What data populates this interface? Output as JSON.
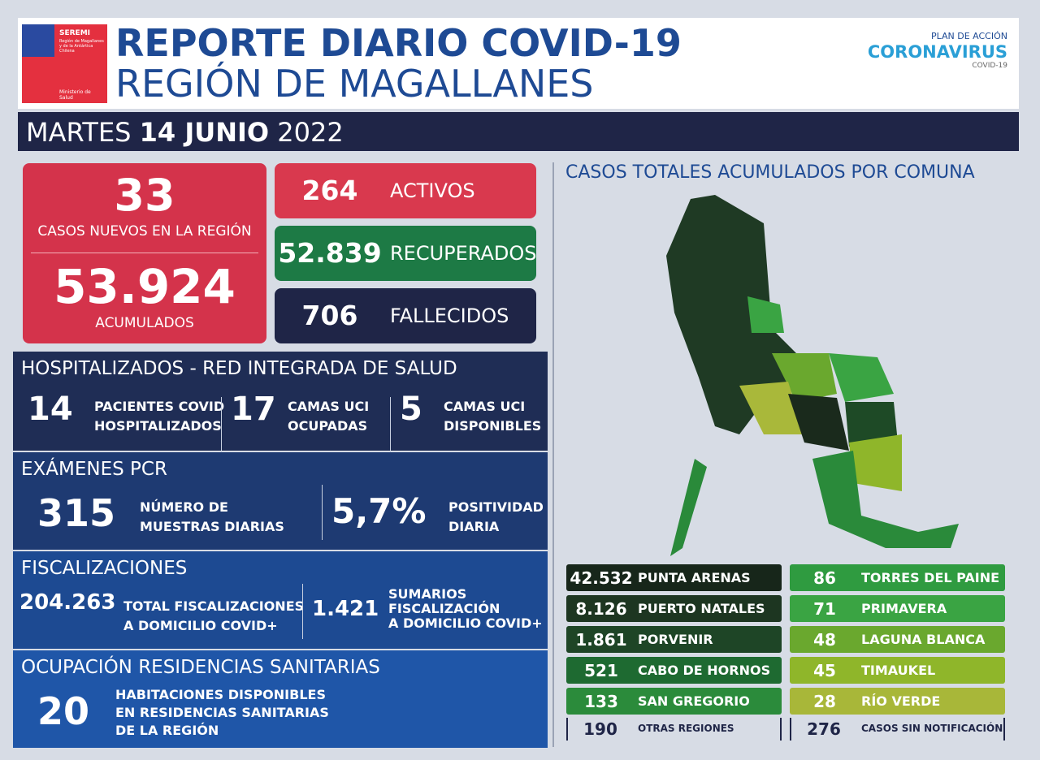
{
  "header": {
    "org": "SEREMI",
    "org_region": "Región de Magallanes y de la Antártica Chilena",
    "ministry": "Ministerio de Salud",
    "title": "REPORTE DIARIO COVID-19",
    "subtitle": "REGIÓN DE MAGALLANES",
    "plan": "PLAN DE ACCIÓN",
    "brand": "CORONAVIRUS",
    "brand_sub": "COVID-19"
  },
  "date": {
    "weekday": "MARTES",
    "day_month": "14 JUNIO",
    "year": "2022"
  },
  "cases": {
    "new": "33",
    "new_label": "CASOS NUEVOS EN LA REGIÓN",
    "total": "53.924",
    "total_label": "ACUMULADOS"
  },
  "status": [
    {
      "value": "264",
      "label": "ACTIVOS"
    },
    {
      "value": "52.839",
      "label": "RECUPERADOS"
    },
    {
      "value": "706",
      "label": "FALLECIDOS"
    }
  ],
  "hospital": {
    "title": "HOSPITALIZADOS - RED INTEGRADA DE SALUD",
    "items": [
      {
        "value": "14",
        "lines": [
          "PACIENTES COVID",
          "HOSPITALIZADOS"
        ]
      },
      {
        "value": "17",
        "lines": [
          "CAMAS UCI",
          "OCUPADAS"
        ]
      },
      {
        "value": "5",
        "lines": [
          "CAMAS UCI",
          "DISPONIBLES"
        ]
      }
    ]
  },
  "pcr": {
    "title": "EXÁMENES PCR",
    "items": [
      {
        "value": "315",
        "lines": [
          "NÚMERO DE",
          "MUESTRAS DIARIAS"
        ]
      },
      {
        "value": "5,7%",
        "lines": [
          "POSITIVIDAD",
          "DIARIA"
        ]
      }
    ]
  },
  "fiscal": {
    "title": "FISCALIZACIONES",
    "items": [
      {
        "value": "204.263",
        "lines": [
          "TOTAL FISCALIZACIONES",
          "A DOMICILIO COVID+"
        ]
      },
      {
        "value": "1.421",
        "lines": [
          "SUMARIOS",
          "FISCALIZACIÓN",
          "A DOMICILIO COVID+"
        ]
      }
    ]
  },
  "residencias": {
    "title": "OCUPACIÓN RESIDENCIAS SANITARIAS",
    "value": "20",
    "lines": [
      "HABITACIONES DISPONIBLES",
      "EN RESIDENCIAS SANITARIAS",
      "DE LA REGIÓN"
    ]
  },
  "map": {
    "title": "CASOS TOTALES ACUMULADOS POR COMUNA",
    "comunas": [
      {
        "value": "42.532",
        "name": "PUNTA ARENAS"
      },
      {
        "value": "8.126",
        "name": "PUERTO NATALES"
      },
      {
        "value": "1.861",
        "name": "PORVENIR"
      },
      {
        "value": "521",
        "name": "CABO DE HORNOS"
      },
      {
        "value": "133",
        "name": "SAN GREGORIO"
      },
      {
        "value": "86",
        "name": "TORRES DEL PAINE"
      },
      {
        "value": "71",
        "name": "PRIMAVERA"
      },
      {
        "value": "48",
        "name": "LAGUNA BLANCA"
      },
      {
        "value": "45",
        "name": "TIMAUKEL"
      },
      {
        "value": "28",
        "name": "RÍO VERDE"
      }
    ],
    "others": [
      {
        "value": "190",
        "name": "OTRAS REGIONES"
      },
      {
        "value": "276",
        "name": "CASOS SIN NOTIFICACIÓN"
      }
    ]
  }
}
